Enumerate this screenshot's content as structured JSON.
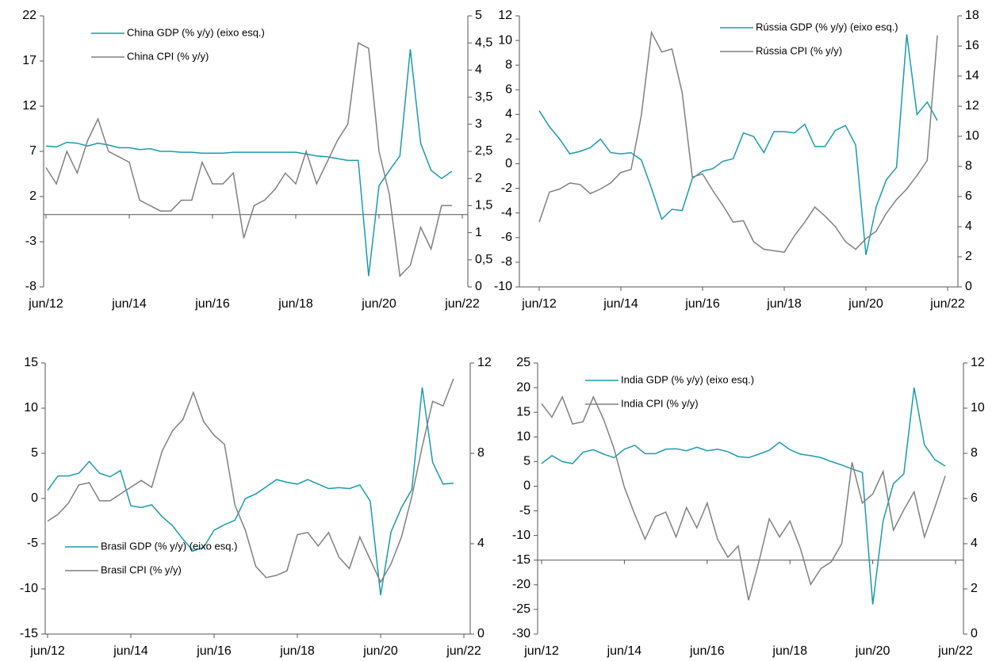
{
  "chart_data": [
    {
      "type": "line",
      "categories": [
        "jun/12",
        null,
        null,
        null,
        null,
        null,
        null,
        null,
        "jun/14",
        null,
        null,
        null,
        null,
        null,
        null,
        null,
        "jun/16",
        null,
        null,
        null,
        null,
        null,
        null,
        null,
        "jun/18",
        null,
        null,
        null,
        null,
        null,
        null,
        null,
        "jun/20",
        null,
        null,
        null,
        null,
        null,
        null,
        null,
        "jun/22"
      ],
      "series": [
        {
          "name": "China GDP (% y/y) (eixo esq.)",
          "color": "#1a9bae",
          "values": [
            7.6,
            7.5,
            8.0,
            7.9,
            7.6,
            7.9,
            7.7,
            7.4,
            7.4,
            7.2,
            7.3,
            7.0,
            7.0,
            6.9,
            6.9,
            6.8,
            6.8,
            6.8,
            6.9,
            6.9,
            6.9,
            6.9,
            6.9,
            6.9,
            6.9,
            6.7,
            6.5,
            6.4,
            6.2,
            6.0,
            6.0,
            -6.8,
            3.2,
            4.9,
            6.5,
            18.3,
            7.9,
            4.9,
            4.0,
            4.8,
            null
          ]
        },
        {
          "name": "China CPI (% y/y)",
          "color": "#808080",
          "axis": "y2",
          "values": [
            2.2,
            1.9,
            2.5,
            2.1,
            2.7,
            3.1,
            2.5,
            2.4,
            2.3,
            1.6,
            1.5,
            1.4,
            1.4,
            1.6,
            1.6,
            2.3,
            1.9,
            1.9,
            2.1,
            0.9,
            1.5,
            1.6,
            1.8,
            2.1,
            1.9,
            2.5,
            1.9,
            2.3,
            2.7,
            3.0,
            4.5,
            4.4,
            2.5,
            1.7,
            0.2,
            0.4,
            1.1,
            0.7,
            1.5,
            1.5,
            null
          ]
        }
      ],
      "ylim": [
        -8,
        22
      ],
      "yticks": [
        -8,
        -3,
        2,
        7,
        12,
        17,
        22
      ],
      "y2lim": [
        0,
        5
      ],
      "y2ticks": [
        0,
        {
          "value": 0.5,
          "label": "0,5"
        },
        1,
        {
          "value": 1.5,
          "label": "1,5"
        },
        2,
        {
          "value": 2.5,
          "label": "2,5"
        },
        3,
        {
          "value": 3.5,
          "label": "3,5"
        },
        4,
        {
          "value": 4.5,
          "label": "4,5"
        },
        5
      ],
      "x_axis_at": 0,
      "legend": "upper-left"
    },
    {
      "type": "line",
      "categories": [
        "jun/12",
        null,
        null,
        null,
        null,
        null,
        null,
        null,
        "jun/14",
        null,
        null,
        null,
        null,
        null,
        null,
        null,
        "jun/16",
        null,
        null,
        null,
        null,
        null,
        null,
        null,
        "jun/18",
        null,
        null,
        null,
        null,
        null,
        null,
        null,
        "jun/20",
        null,
        null,
        null,
        null,
        null,
        null,
        null,
        "jun/22"
      ],
      "series": [
        {
          "name": "Rússia GDP (% y/y) (eixo esq.)",
          "color": "#1a9bae",
          "values": [
            4.3,
            3.0,
            2.0,
            0.8,
            1.0,
            1.3,
            2.0,
            0.9,
            0.8,
            0.9,
            0.3,
            -2.0,
            -4.5,
            -3.7,
            -3.8,
            -1.2,
            -0.6,
            -0.4,
            0.2,
            0.4,
            2.5,
            2.2,
            0.9,
            2.6,
            2.6,
            2.5,
            3.2,
            1.4,
            1.4,
            2.7,
            3.1,
            1.5,
            -7.4,
            -3.5,
            -1.3,
            -0.3,
            10.5,
            4.0,
            5.0,
            3.5,
            null
          ]
        },
        {
          "name": "Rússia CPI (% y/y)",
          "color": "#808080",
          "axis": "y2",
          "values": [
            4.3,
            6.3,
            6.5,
            6.9,
            6.8,
            6.2,
            6.5,
            6.9,
            7.6,
            7.8,
            11.4,
            16.9,
            15.6,
            15.8,
            12.9,
            7.3,
            7.5,
            6.4,
            5.4,
            4.3,
            4.4,
            3.0,
            2.5,
            2.4,
            2.3,
            3.4,
            4.3,
            5.3,
            4.7,
            4.0,
            3.0,
            2.5,
            3.2,
            3.7,
            4.9,
            5.8,
            6.5,
            7.4,
            8.4,
            16.7,
            null
          ]
        }
      ],
      "ylim": [
        -10,
        12
      ],
      "yticks": [
        -10,
        -8,
        -6,
        -4,
        -2,
        0,
        2,
        4,
        6,
        8,
        10,
        12
      ],
      "y2lim": [
        0,
        18
      ],
      "y2ticks": [
        0,
        2,
        4,
        6,
        8,
        10,
        12,
        14,
        16,
        18
      ],
      "legend": "upper-right"
    },
    {
      "type": "line",
      "categories": [
        "jun/12",
        null,
        null,
        null,
        null,
        null,
        null,
        null,
        "jun/14",
        null,
        null,
        null,
        null,
        null,
        null,
        null,
        "jun/16",
        null,
        null,
        null,
        null,
        null,
        null,
        null,
        "jun/18",
        null,
        null,
        null,
        null,
        null,
        null,
        null,
        "jun/20",
        null,
        null,
        null,
        null,
        null,
        null,
        null,
        "jun/22"
      ],
      "series": [
        {
          "name": "Brasil GDP (% y/y) (eixo esq.)",
          "color": "#1a9bae",
          "values": [
            0.9,
            2.5,
            2.5,
            2.8,
            4.1,
            2.8,
            2.4,
            3.1,
            -0.8,
            -1.0,
            -0.7,
            -2.0,
            -3.0,
            -4.5,
            -5.8,
            -5.4,
            -3.5,
            -2.9,
            -2.4,
            0.0,
            0.5,
            1.3,
            2.1,
            1.8,
            1.6,
            2.1,
            1.6,
            1.1,
            1.2,
            1.1,
            1.5,
            -0.3,
            -10.7,
            -3.7,
            -1.0,
            1.0,
            12.3,
            4.0,
            1.6,
            1.7,
            null
          ]
        },
        {
          "name": "Brasil CPI (% y/y)",
          "color": "#808080",
          "axis": "y2",
          "values": [
            5.0,
            5.3,
            5.8,
            6.6,
            6.7,
            5.9,
            5.9,
            6.2,
            6.5,
            6.8,
            6.5,
            8.1,
            9.0,
            9.5,
            10.7,
            9.4,
            8.8,
            8.4,
            5.7,
            4.6,
            3.0,
            2.5,
            2.6,
            2.8,
            4.4,
            4.5,
            3.9,
            4.5,
            3.4,
            2.9,
            4.3,
            3.3,
            2.3,
            3.1,
            4.3,
            6.1,
            8.3,
            10.3,
            10.1,
            11.3,
            null
          ]
        }
      ],
      "ylim": [
        -15,
        15
      ],
      "yticks": [
        -15,
        -10,
        -5,
        0,
        5,
        10,
        15
      ],
      "y2lim": [
        0,
        12
      ],
      "y2ticks": [
        0,
        4,
        8,
        12
      ],
      "legend": "lower-left"
    },
    {
      "type": "line",
      "categories": [
        "jun/12",
        null,
        null,
        null,
        null,
        null,
        null,
        null,
        "jun/14",
        null,
        null,
        null,
        null,
        null,
        null,
        null,
        "jun/16",
        null,
        null,
        null,
        null,
        null,
        null,
        null,
        "jun/18",
        null,
        null,
        null,
        null,
        null,
        null,
        null,
        "jun/20",
        null,
        null,
        null,
        null,
        null,
        null,
        null,
        "jun/22"
      ],
      "series": [
        {
          "name": "India GDP (% y/y) (eixo esq.)",
          "color": "#1a9bae",
          "values": [
            4.6,
            6.2,
            5.0,
            4.6,
            6.9,
            7.4,
            6.5,
            5.8,
            7.5,
            8.3,
            6.6,
            6.6,
            7.5,
            7.6,
            7.2,
            7.9,
            7.2,
            7.5,
            7.0,
            6.0,
            5.8,
            6.5,
            7.3,
            8.9,
            7.4,
            6.5,
            6.2,
            5.8,
            5.0,
            4.3,
            3.5,
            2.8,
            -24,
            -7,
            0.5,
            2.5,
            20,
            8.4,
            5.4,
            4.1,
            null
          ]
        },
        {
          "name": "India CPI (% y/y)",
          "color": "#808080",
          "axis": "y2",
          "values": [
            10.2,
            9.6,
            10.5,
            9.3,
            9.4,
            10.5,
            9.5,
            8.2,
            6.5,
            5.3,
            4.2,
            5.2,
            5.4,
            4.3,
            5.6,
            4.7,
            5.8,
            4.2,
            3.4,
            3.9,
            1.5,
            3.2,
            5.1,
            4.3,
            5.0,
            3.8,
            2.2,
            2.9,
            3.2,
            4.0,
            7.6,
            5.8,
            6.2,
            7.2,
            4.6,
            5.5,
            6.3,
            4.3,
            5.6,
            7.0,
            null
          ]
        }
      ],
      "ylim": [
        -30,
        25
      ],
      "yticks": [
        -30,
        -25,
        -20,
        -15,
        -10,
        -5,
        0,
        5,
        10,
        15,
        20,
        25
      ],
      "y2lim": [
        0,
        12
      ],
      "y2ticks": [
        0,
        2,
        4,
        6,
        8,
        10,
        12
      ],
      "x_axis_at": -15,
      "legend": "upper-left"
    }
  ]
}
